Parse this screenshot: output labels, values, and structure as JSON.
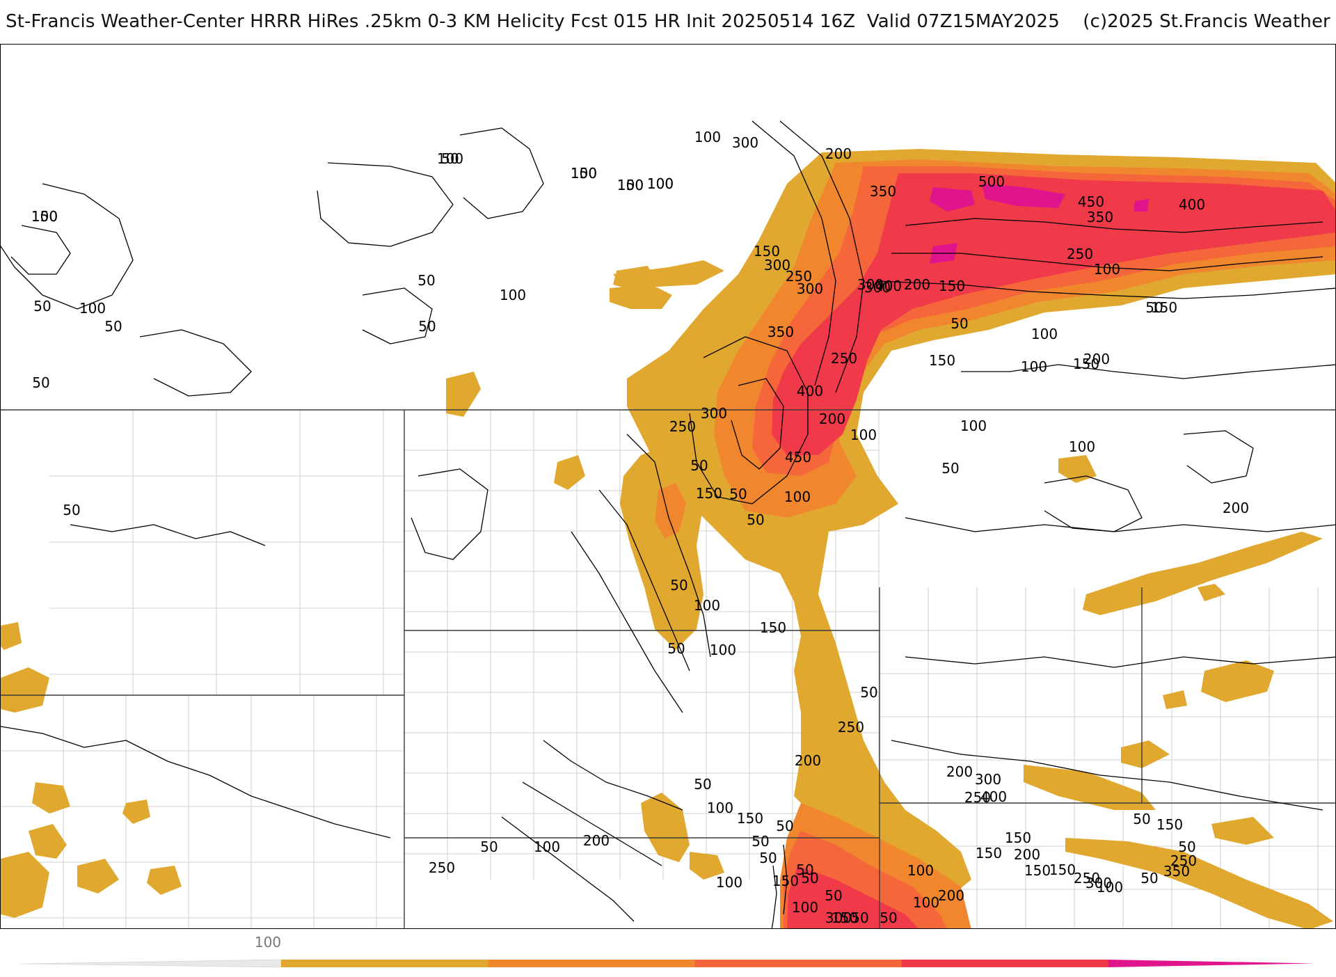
{
  "title": "St-Francis Weather-Center HRRR HiRes .25km 0-3 KM Helicity Fcst 015 HR Init 20250514 16Z  Valid 07Z15MAY2025    (c)2025 St.Francis Weather",
  "colors": {
    "band_100_200": "#e0a82e",
    "band_200_300": "#f0862e",
    "band_300_400": "#f5663a",
    "band_400_500": "#f03a4a",
    "band_500_plus": "#e0148c",
    "contour": "#000000",
    "state_border": "#3a3a3a",
    "county_border": "#cfcfcf"
  },
  "legend": {
    "tick_label": "100",
    "segment_colors": [
      "#e0a82e",
      "#f0862e",
      "#f5663a",
      "#f03a4a",
      "#e0148c"
    ]
  },
  "contour_labels": [
    {
      "text": "50"
    },
    {
      "text": "100"
    },
    {
      "text": "150"
    },
    {
      "text": "100"
    },
    {
      "text": "100"
    },
    {
      "text": "50"
    },
    {
      "text": "50"
    },
    {
      "text": "100"
    },
    {
      "text": "50"
    },
    {
      "text": "50"
    },
    {
      "text": "50"
    },
    {
      "text": "100"
    },
    {
      "text": "50"
    },
    {
      "text": "100"
    },
    {
      "text": "300"
    },
    {
      "text": "200"
    },
    {
      "text": "350"
    },
    {
      "text": "500"
    },
    {
      "text": "450"
    },
    {
      "text": "400"
    },
    {
      "text": "350"
    },
    {
      "text": "250"
    },
    {
      "text": "300"
    },
    {
      "text": "200"
    },
    {
      "text": "100"
    },
    {
      "text": "150"
    },
    {
      "text": "50"
    },
    {
      "text": "50"
    },
    {
      "text": "100"
    },
    {
      "text": "150"
    },
    {
      "text": "300"
    },
    {
      "text": "250"
    },
    {
      "text": "300"
    },
    {
      "text": "400"
    },
    {
      "text": "300"
    },
    {
      "text": "150"
    },
    {
      "text": "250"
    },
    {
      "text": "350"
    },
    {
      "text": "400"
    },
    {
      "text": "450"
    },
    {
      "text": "200"
    },
    {
      "text": "100"
    },
    {
      "text": "100"
    },
    {
      "text": "150"
    },
    {
      "text": "150"
    },
    {
      "text": "200"
    },
    {
      "text": "100"
    },
    {
      "text": "100"
    },
    {
      "text": "50"
    },
    {
      "text": "200"
    },
    {
      "text": "250"
    },
    {
      "text": "300"
    },
    {
      "text": "100"
    },
    {
      "text": "50"
    },
    {
      "text": "150"
    },
    {
      "text": "50"
    },
    {
      "text": "50"
    },
    {
      "text": "50"
    },
    {
      "text": "100"
    },
    {
      "text": "50"
    },
    {
      "text": "100"
    },
    {
      "text": "150"
    },
    {
      "text": "50"
    },
    {
      "text": "250"
    },
    {
      "text": "200"
    },
    {
      "text": "50"
    },
    {
      "text": "100"
    },
    {
      "text": "150"
    },
    {
      "text": "50"
    },
    {
      "text": "50"
    },
    {
      "text": "50"
    },
    {
      "text": "50"
    },
    {
      "text": "50"
    },
    {
      "text": "50"
    },
    {
      "text": "100"
    },
    {
      "text": "50"
    },
    {
      "text": "100"
    },
    {
      "text": "150"
    },
    {
      "text": "100"
    },
    {
      "text": "100"
    },
    {
      "text": "200"
    },
    {
      "text": "50"
    },
    {
      "text": "100"
    },
    {
      "text": "250"
    },
    {
      "text": "150"
    },
    {
      "text": "300"
    },
    {
      "text": "50"
    },
    {
      "text": "200"
    },
    {
      "text": "150"
    },
    {
      "text": "250"
    },
    {
      "text": "400"
    },
    {
      "text": "300"
    },
    {
      "text": "200"
    },
    {
      "text": "150"
    },
    {
      "text": "200"
    },
    {
      "text": "150"
    },
    {
      "text": "150"
    },
    {
      "text": "250"
    },
    {
      "text": "300"
    },
    {
      "text": "100"
    },
    {
      "text": "50"
    },
    {
      "text": "350"
    },
    {
      "text": "250"
    },
    {
      "text": "50"
    },
    {
      "text": "50"
    },
    {
      "text": "150"
    },
    {
      "text": "100"
    },
    {
      "text": "150"
    },
    {
      "text": "100"
    },
    {
      "text": "100"
    },
    {
      "text": "150"
    }
  ]
}
